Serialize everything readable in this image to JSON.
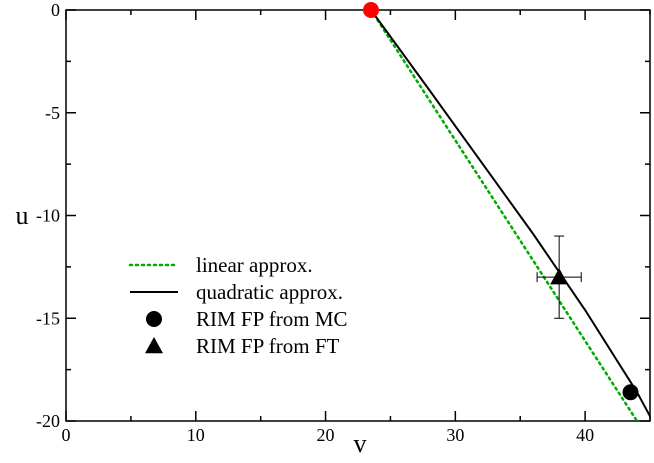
{
  "chart_data": {
    "type": "line",
    "title": "",
    "xlabel": "v",
    "ylabel": "u",
    "xlim": [
      0,
      45
    ],
    "ylim": [
      -20,
      0
    ],
    "x_ticks": [
      0,
      10,
      20,
      30,
      40
    ],
    "y_ticks": [
      0,
      -5,
      -10,
      -15,
      -20
    ],
    "x_tick_labels": [
      "0",
      "10",
      "20",
      "30",
      "40"
    ],
    "y_tick_labels": [
      "0",
      "-5",
      "-10",
      "-15",
      "-20"
    ],
    "grid": false,
    "legend_position": "left",
    "series": [
      {
        "name": "linear approx.",
        "style": "dotted",
        "color": "#00aa00",
        "x": [
          23.5,
          44.0
        ],
        "y": [
          0.0,
          -20.0
        ]
      },
      {
        "name": "quadratic approx.",
        "style": "solid",
        "color": "#000000",
        "x": [
          23.5,
          28.0,
          32.0,
          36.0,
          40.0,
          44.0,
          45.2
        ],
        "y": [
          0.0,
          -3.9,
          -7.4,
          -10.9,
          -14.6,
          -18.6,
          -20.0
        ]
      }
    ],
    "points": [
      {
        "name": "",
        "x": 23.5,
        "y": 0.0,
        "marker": "circle",
        "color": "#ff0000"
      },
      {
        "name": "RIM FP from MC",
        "x": 43.5,
        "y": -18.6,
        "marker": "circle",
        "color": "#000000"
      },
      {
        "name": "RIM FP from FT",
        "x": 38.0,
        "y": -13.0,
        "marker": "triangle",
        "color": "#000000",
        "xerr": 1.7,
        "yerr": 2.0
      }
    ]
  }
}
